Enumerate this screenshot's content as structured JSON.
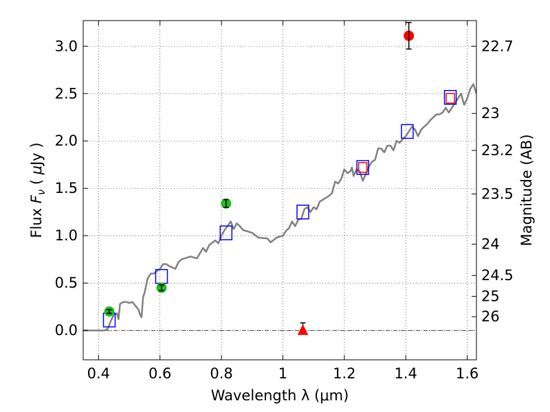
{
  "chart_data": {
    "type": "scatter",
    "title": "",
    "xlabel": "Wavelength  λ (μm)",
    "ylabel": "Flux  F_ν  ( μJy )",
    "ylabel_right": "Magnitude (AB)",
    "xlim": [
      0.35,
      1.63
    ],
    "ylim": [
      -0.31,
      3.27
    ],
    "grid": true,
    "xticks": [
      0.4,
      0.6,
      0.8,
      1.0,
      1.2,
      1.4,
      1.6
    ],
    "xtick_labels": [
      "0.4",
      "0.6",
      "0.8",
      "1",
      "1.2",
      "1.4",
      "1.6"
    ],
    "yticks": [
      0.0,
      0.5,
      1.0,
      1.5,
      2.0,
      2.5,
      3.0
    ],
    "ytick_labels": [
      "0.0",
      "0.5",
      "1.0",
      "1.5",
      "2.0",
      "2.5",
      "3.0"
    ],
    "right_ticks": [
      {
        "label": "22.7",
        "flux": 3.0
      },
      {
        "label": "23",
        "flux": 2.29
      },
      {
        "label": "23.2",
        "flux": 1.9
      },
      {
        "label": "23.5",
        "flux": 1.44
      },
      {
        "label": "24",
        "flux": 0.91
      },
      {
        "label": "24.5",
        "flux": 0.58
      },
      {
        "label": "25",
        "flux": 0.36
      },
      {
        "label": "26",
        "flux": 0.145
      }
    ],
    "series": [
      {
        "kind": "model_spectrum",
        "color": "#808080",
        "x": [
          0.35,
          0.42,
          0.43,
          0.44,
          0.45,
          0.46,
          0.465,
          0.47,
          0.48,
          0.49,
          0.5,
          0.51,
          0.52,
          0.53,
          0.535,
          0.54,
          0.545,
          0.55,
          0.56,
          0.57,
          0.58,
          0.6,
          0.61,
          0.62,
          0.63,
          0.65,
          0.66,
          0.67,
          0.7,
          0.72,
          0.74,
          0.75,
          0.76,
          0.78,
          0.79,
          0.8,
          0.81,
          0.82,
          0.83,
          0.84,
          0.85,
          0.86,
          0.87,
          0.88,
          0.9,
          0.92,
          0.95,
          0.96,
          0.98,
          1.0,
          1.01,
          1.02,
          1.03,
          1.04,
          1.05,
          1.06,
          1.07,
          1.08,
          1.09,
          1.1,
          1.11,
          1.12,
          1.13,
          1.15,
          1.16,
          1.17,
          1.18,
          1.19,
          1.2,
          1.21,
          1.22,
          1.225,
          1.23,
          1.24,
          1.25,
          1.26,
          1.27,
          1.28,
          1.29,
          1.3,
          1.31,
          1.32,
          1.33,
          1.34,
          1.35,
          1.36,
          1.37,
          1.38,
          1.39,
          1.4,
          1.41,
          1.42,
          1.43,
          1.44,
          1.45,
          1.46,
          1.47,
          1.48,
          1.49,
          1.5,
          1.51,
          1.52,
          1.53,
          1.54,
          1.55,
          1.56,
          1.57,
          1.58,
          1.59,
          1.6,
          1.61,
          1.62,
          1.63
        ],
        "y": [
          0.0,
          0.0,
          0.02,
          0.1,
          0.17,
          0.18,
          0.12,
          0.28,
          0.3,
          0.3,
          0.29,
          0.3,
          0.26,
          0.22,
          0.17,
          0.14,
          0.35,
          0.4,
          0.55,
          0.6,
          0.6,
          0.65,
          0.7,
          0.7,
          0.68,
          0.65,
          0.72,
          0.75,
          0.78,
          0.76,
          0.87,
          0.83,
          0.9,
          0.95,
          0.92,
          1.0,
          1.06,
          1.1,
          1.15,
          1.07,
          1.13,
          1.1,
          1.06,
          1.05,
          1.03,
          0.98,
          0.97,
          0.93,
          0.98,
          1.0,
          1.05,
          1.08,
          1.15,
          1.1,
          1.17,
          1.18,
          1.28,
          1.3,
          1.25,
          1.3,
          1.28,
          1.36,
          1.38,
          1.42,
          1.45,
          1.57,
          1.55,
          1.6,
          1.7,
          1.66,
          1.68,
          1.72,
          1.63,
          1.7,
          1.68,
          1.58,
          1.65,
          1.73,
          1.78,
          1.8,
          1.92,
          1.92,
          1.88,
          1.95,
          1.95,
          1.9,
          2.0,
          1.98,
          2.02,
          2.05,
          2.1,
          2.15,
          2.12,
          2.05,
          2.12,
          2.15,
          2.18,
          2.22,
          2.25,
          2.28,
          2.28,
          2.3,
          2.35,
          2.3,
          2.35,
          2.4,
          2.45,
          2.5,
          2.38,
          2.45,
          2.55,
          2.6,
          2.5
        ]
      },
      {
        "kind": "model_photometry",
        "marker": "open-square",
        "color": "#0000ff",
        "x": [
          0.435,
          0.605,
          0.815,
          1.065,
          1.26,
          1.405,
          1.545
        ],
        "y": [
          0.11,
          0.57,
          1.03,
          1.25,
          1.72,
          2.1,
          2.46
        ]
      },
      {
        "kind": "photometry",
        "marker": "circle",
        "color": "#22bb22",
        "x": [
          0.435,
          0.605,
          0.815
        ],
        "y": [
          0.2,
          0.45,
          1.34
        ],
        "yerr": [
          0.02,
          0.03,
          0.04
        ]
      },
      {
        "kind": "photometry",
        "marker": "circle",
        "color": "#ff0000",
        "x": [
          1.41
        ],
        "y": [
          3.11
        ],
        "yerr": [
          0.14
        ]
      },
      {
        "kind": "upper_limit",
        "marker": "triangle",
        "color": "#ff0000",
        "x": [
          1.065
        ],
        "y": [
          0.0
        ],
        "err_hi": [
          0.08
        ]
      },
      {
        "kind": "model_photometry_inner",
        "marker": "open-square",
        "color": "#ff0000",
        "x": [
          1.26,
          1.545
        ],
        "y": [
          1.72,
          2.45
        ]
      }
    ]
  }
}
